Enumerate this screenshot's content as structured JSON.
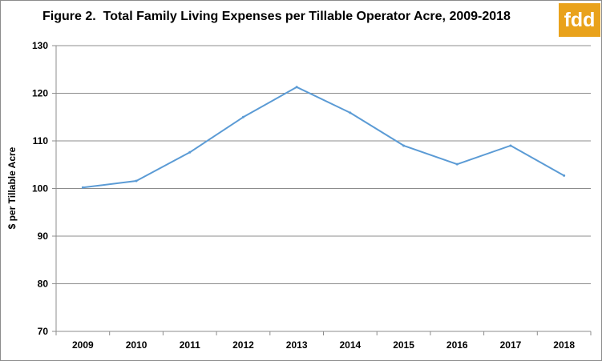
{
  "title": "Figure 2.  Total Family Living Expenses per Tillable Operator Acre, 2009-2018",
  "logo_text": "fdd",
  "colors": {
    "line": "#5b9bd5",
    "logo": "#e9a21b",
    "grid": "#8c8c8c"
  },
  "chart_data": {
    "type": "line",
    "title": "Figure 2.  Total Family Living Expenses per Tillable Operator Acre, 2009-2018",
    "xlabel": "",
    "ylabel": "$ per Tillable Acre",
    "categories": [
      "2009",
      "2010",
      "2011",
      "2012",
      "2013",
      "2014",
      "2015",
      "2016",
      "2017",
      "2018"
    ],
    "yticks": [
      70,
      80,
      90,
      100,
      110,
      120,
      130
    ],
    "ylim": [
      70,
      130
    ],
    "grid": true,
    "legend": "none",
    "series": [
      {
        "values": [
          100.2,
          101.6,
          107.6,
          115.0,
          121.3,
          115.9,
          109.0,
          105.1,
          109.0,
          102.7
        ]
      }
    ]
  }
}
